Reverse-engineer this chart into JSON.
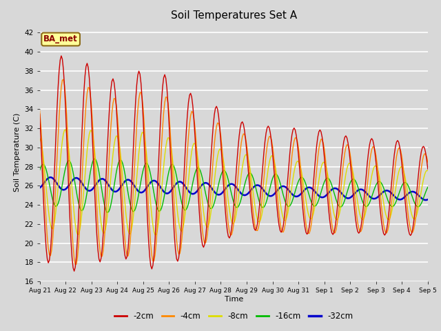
{
  "title": "Soil Temperatures Set A",
  "xlabel": "Time",
  "ylabel": "Soil Temperature (C)",
  "ylim": [
    16,
    43
  ],
  "yticks": [
    16,
    18,
    20,
    22,
    24,
    26,
    28,
    30,
    32,
    34,
    36,
    38,
    40,
    42
  ],
  "legend_label": "BA_met",
  "series_labels": [
    "-2cm",
    "-4cm",
    "-8cm",
    "-16cm",
    "-32cm"
  ],
  "series_colors": [
    "#cc0000",
    "#ff8800",
    "#dddd00",
    "#00bb00",
    "#0000cc"
  ],
  "line_widths": [
    1.0,
    1.0,
    1.0,
    1.0,
    1.8
  ],
  "bg_color": "#d8d8d8",
  "x_tick_labels": [
    "Aug 21",
    "Aug 22",
    "Aug 23",
    "Aug 24",
    "Aug 25",
    "Aug 26",
    "Aug 27",
    "Aug 28",
    "Aug 29",
    "Aug 30",
    "Aug 31",
    "Sep 1",
    "Sep 2",
    "Sep 3",
    "Sep 4",
    "Sep 5"
  ],
  "figsize": [
    6.4,
    4.8
  ],
  "dpi": 100
}
